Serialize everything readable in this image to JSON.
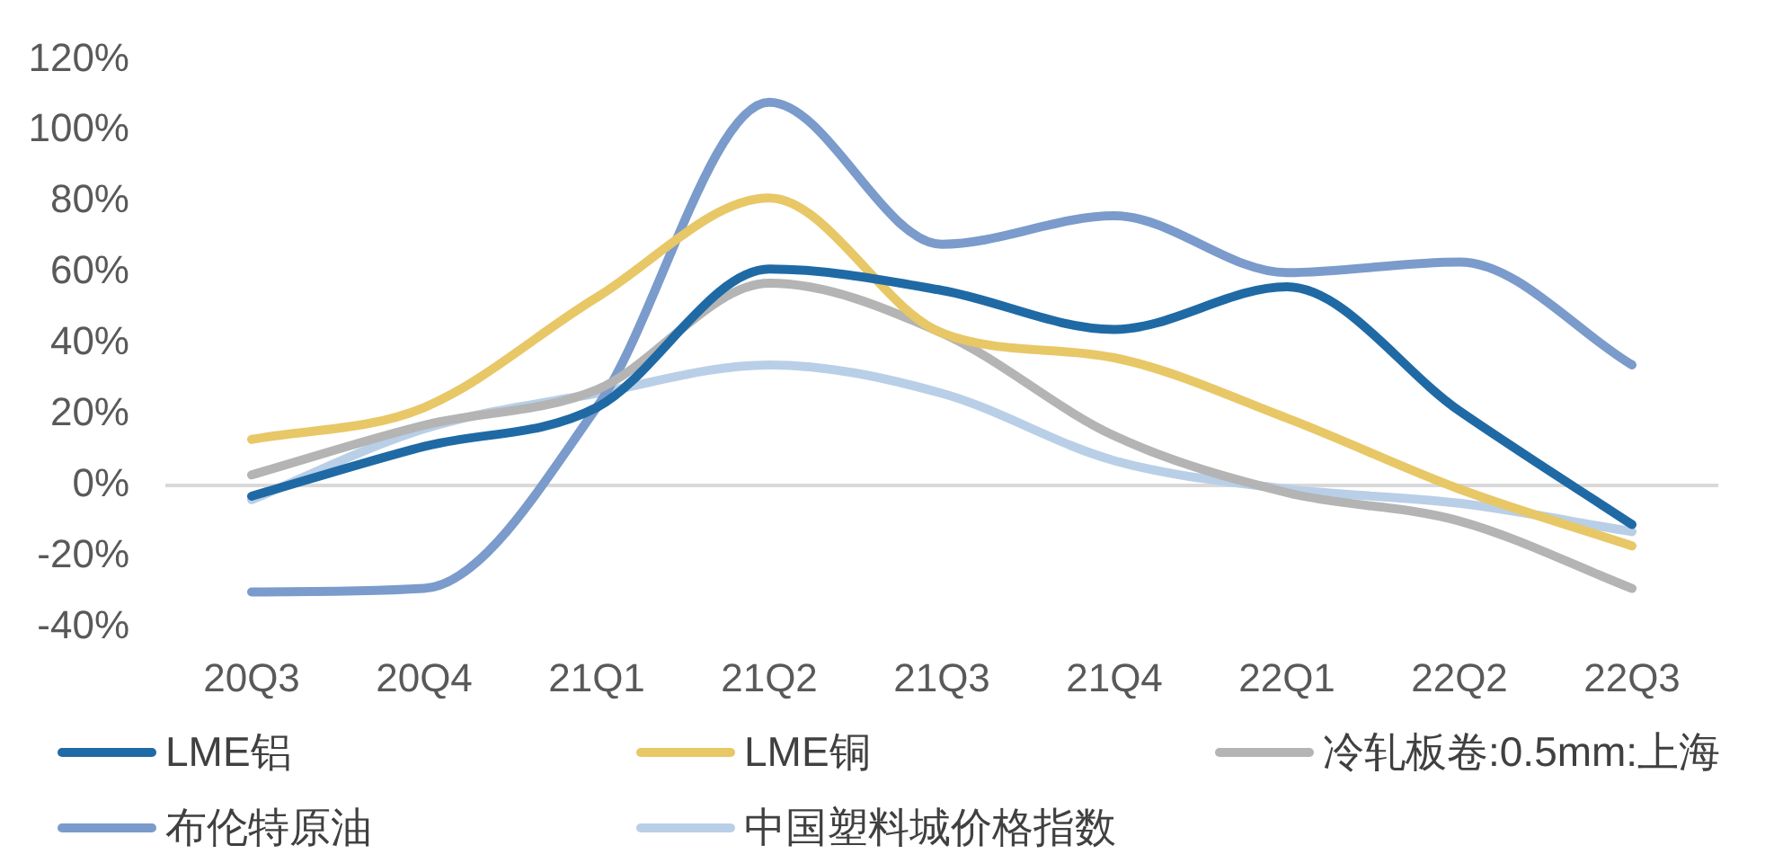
{
  "chart_data": {
    "type": "line",
    "categories": [
      "20Q3",
      "20Q4",
      "21Q1",
      "21Q2",
      "21Q3",
      "21Q4",
      "22Q1",
      "22Q2",
      "22Q3"
    ],
    "series": [
      {
        "name": "LME铝",
        "color": "#1f6aa5",
        "values": [
          -3,
          11,
          22,
          61,
          55,
          44,
          56,
          21,
          -11
        ]
      },
      {
        "name": "LME铜",
        "color": "#e8c766",
        "values": [
          13,
          22,
          53,
          81,
          43,
          36,
          19,
          -1,
          -17
        ]
      },
      {
        "name": "冷轧板卷:0.5mm:上海",
        "color": "#b4b4b4",
        "values": [
          3,
          17,
          27,
          57,
          43,
          14,
          -2,
          -10,
          -29
        ]
      },
      {
        "name": "布伦特原油",
        "color": "#7a9bcb",
        "values": [
          -30,
          -29,
          22,
          108,
          68,
          76,
          60,
          63,
          34
        ]
      },
      {
        "name": "中国塑料城价格指数",
        "color": "#b9cfe7",
        "values": [
          -4,
          16,
          26,
          34,
          26,
          7,
          -1,
          -5,
          -13
        ]
      }
    ],
    "ylim": [
      -40,
      120
    ],
    "yticks": [
      {
        "value": -40,
        "label": "-40%"
      },
      {
        "value": -20,
        "label": "-20%"
      },
      {
        "value": 0,
        "label": "0%"
      },
      {
        "value": 20,
        "label": "20%"
      },
      {
        "value": 40,
        "label": "40%"
      },
      {
        "value": 60,
        "label": "60%"
      },
      {
        "value": 80,
        "label": "80%"
      },
      {
        "value": 100,
        "label": "100%"
      },
      {
        "value": 120,
        "label": "120%"
      }
    ],
    "grid": false,
    "legend": "bottom",
    "marker": "none",
    "line_style": "solid",
    "ref_lines": [
      {
        "axis": "y",
        "value": 0,
        "color": "#d9d9d9"
      }
    ]
  }
}
